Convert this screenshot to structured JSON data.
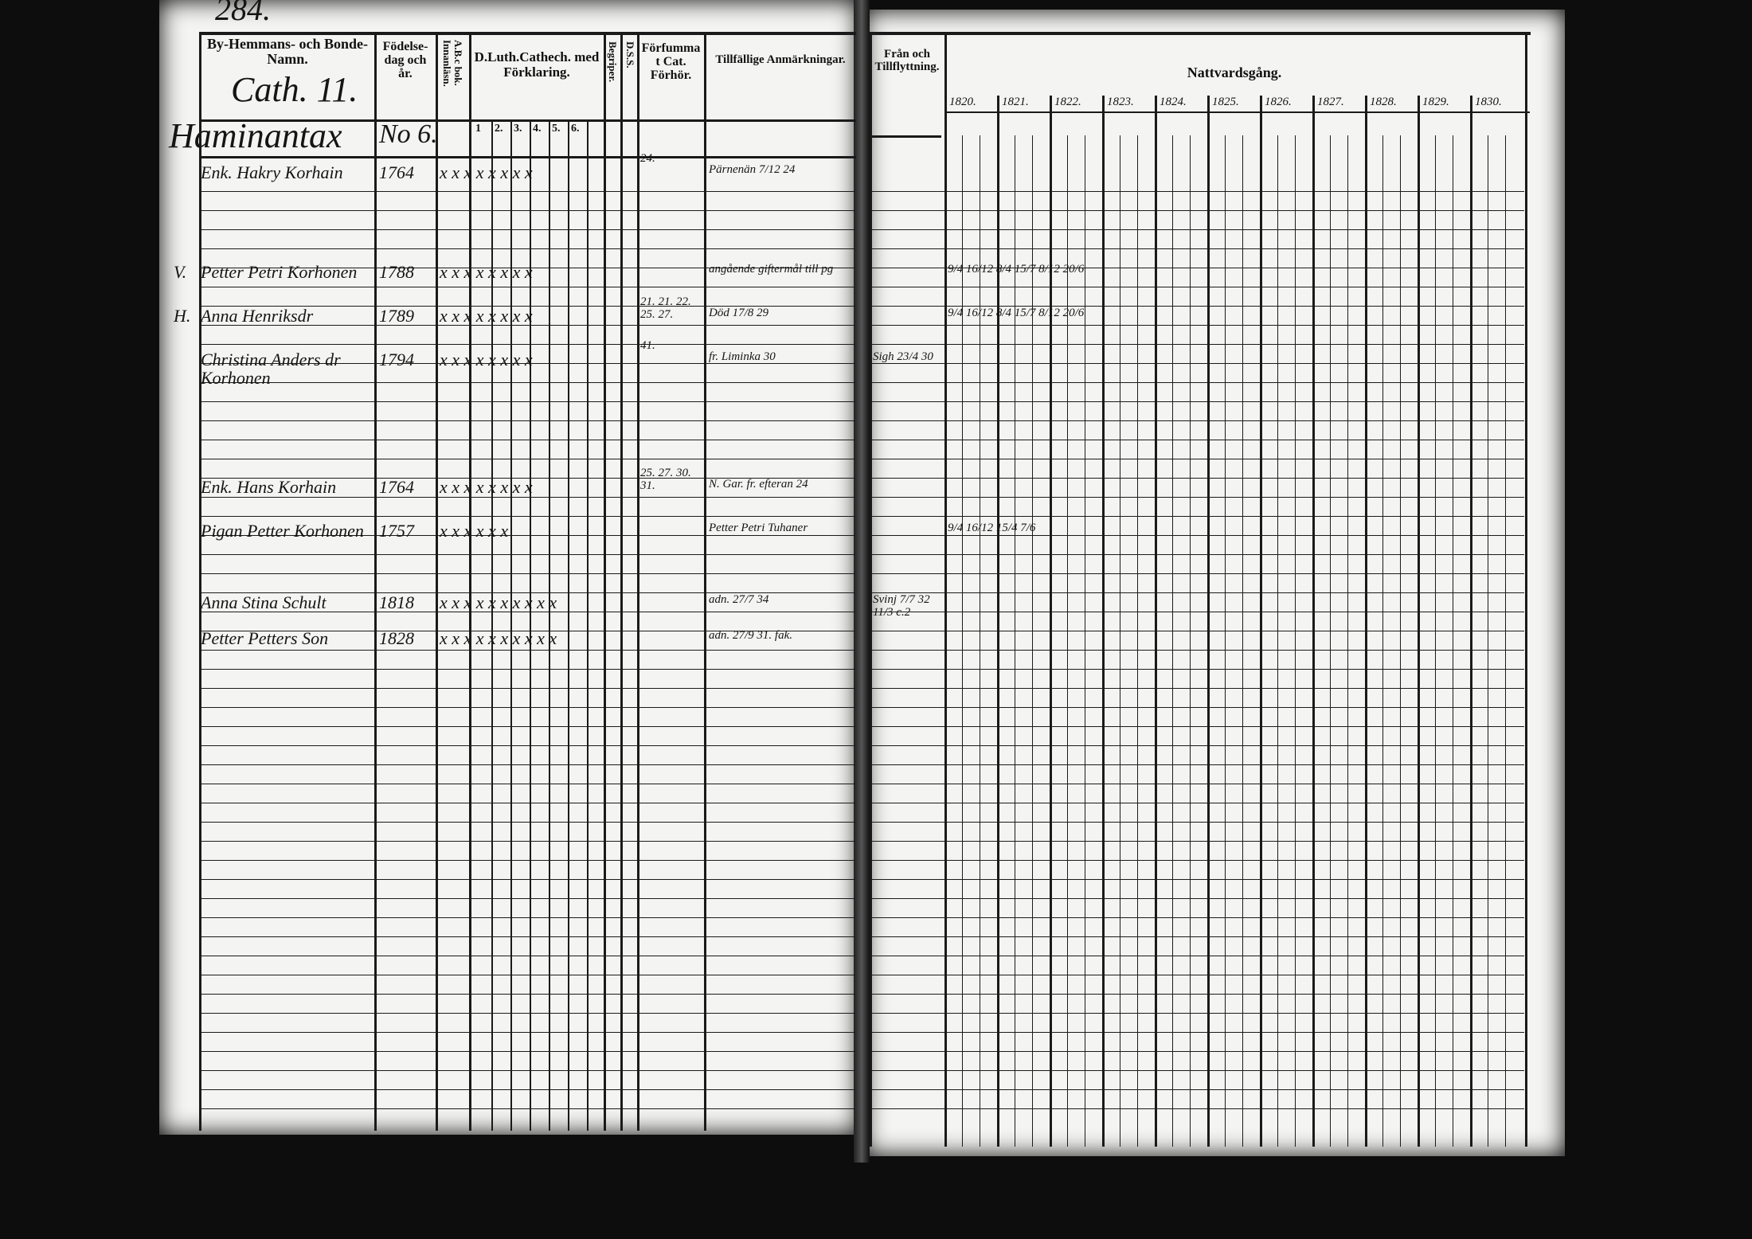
{
  "page_number": "284.",
  "left_page": {
    "headers": {
      "name": "By-Hemmans- och Bonde-Namn.",
      "birth": "Födelse-dag och år.",
      "abc": "A.B.c bok. Innanläsn.",
      "catechism": "D.Luth.Cathech. med Förklaring.",
      "catechism_parts": [
        "1",
        "2.",
        "3.",
        "4.",
        "5.",
        "6."
      ],
      "begriper": "Begriper.",
      "dss": "D.S.S.",
      "forfum": "Förfummat Cat. Förhör.",
      "notes": "Tillfällige Anmärkningar."
    },
    "section": {
      "title": "Cath. 11.",
      "farm": "Haminantax",
      "number": "No 6."
    },
    "rows": [
      {
        "name": "Enk. Hakry Korhain",
        "birth": "1764",
        "marks": "x x x x x x x x",
        "forfum": "24.",
        "note": "Pärnenän 7/12 24"
      },
      {
        "prefix": "V.",
        "name": "Petter Petri Korhonen",
        "birth": "1788",
        "marks": "x x x x x x x x",
        "note": "angående giftermål till pg",
        "right": "9/4 16/12 8/4 15/7 8/12 20/6"
      },
      {
        "prefix": "H.",
        "name": "Anna Henriksdr",
        "birth": "1789",
        "marks": "x x x x x x x x",
        "forfum": "21. 21. 22. 25. 27.",
        "note": "Död 17/8 29",
        "right": "9/4 16/12 8/4 15/7 8/12 20/6"
      },
      {
        "name": "Christina Anders dr Korhonen",
        "birth": "1794",
        "marks": "x x x x x x x x",
        "forfum": "41.",
        "note": "fr. Liminka 30",
        "moving": "Sigh 23/4 30"
      },
      {
        "name": "Enk. Hans Korhain",
        "birth": "1764",
        "marks": "x x x x x x x x",
        "forfum": "25. 27. 30. 31.",
        "note": "N. Gar. fr. efteran 24"
      },
      {
        "name": "Pigan Petter Korhonen",
        "birth": "1757",
        "marks": "x x x x x x",
        "note": "Petter Petri Tuhaner",
        "right": "9/4 16/12 15/4 7/6"
      },
      {
        "name": "Anna Stina Schult",
        "birth": "1818",
        "marks": "x x x x x x x x x x",
        "note": "adn. 27/7 34",
        "moving": "Svinj 7/7 32 11/3 c.2"
      },
      {
        "name": "Petter Petters Son",
        "birth": "1828",
        "marks": "x x x x x x x x x x",
        "note": "adn. 27/9 31. fak."
      }
    ]
  },
  "right_page": {
    "headers": {
      "moving": "Från och Tillflyttning.",
      "communion": "Nattvardsgång."
    },
    "years": [
      "1820.",
      "1821.",
      "1822.",
      "1823.",
      "1824.",
      "1825.",
      "1826.",
      "1827.",
      "1828.",
      "1829.",
      "1830."
    ]
  }
}
